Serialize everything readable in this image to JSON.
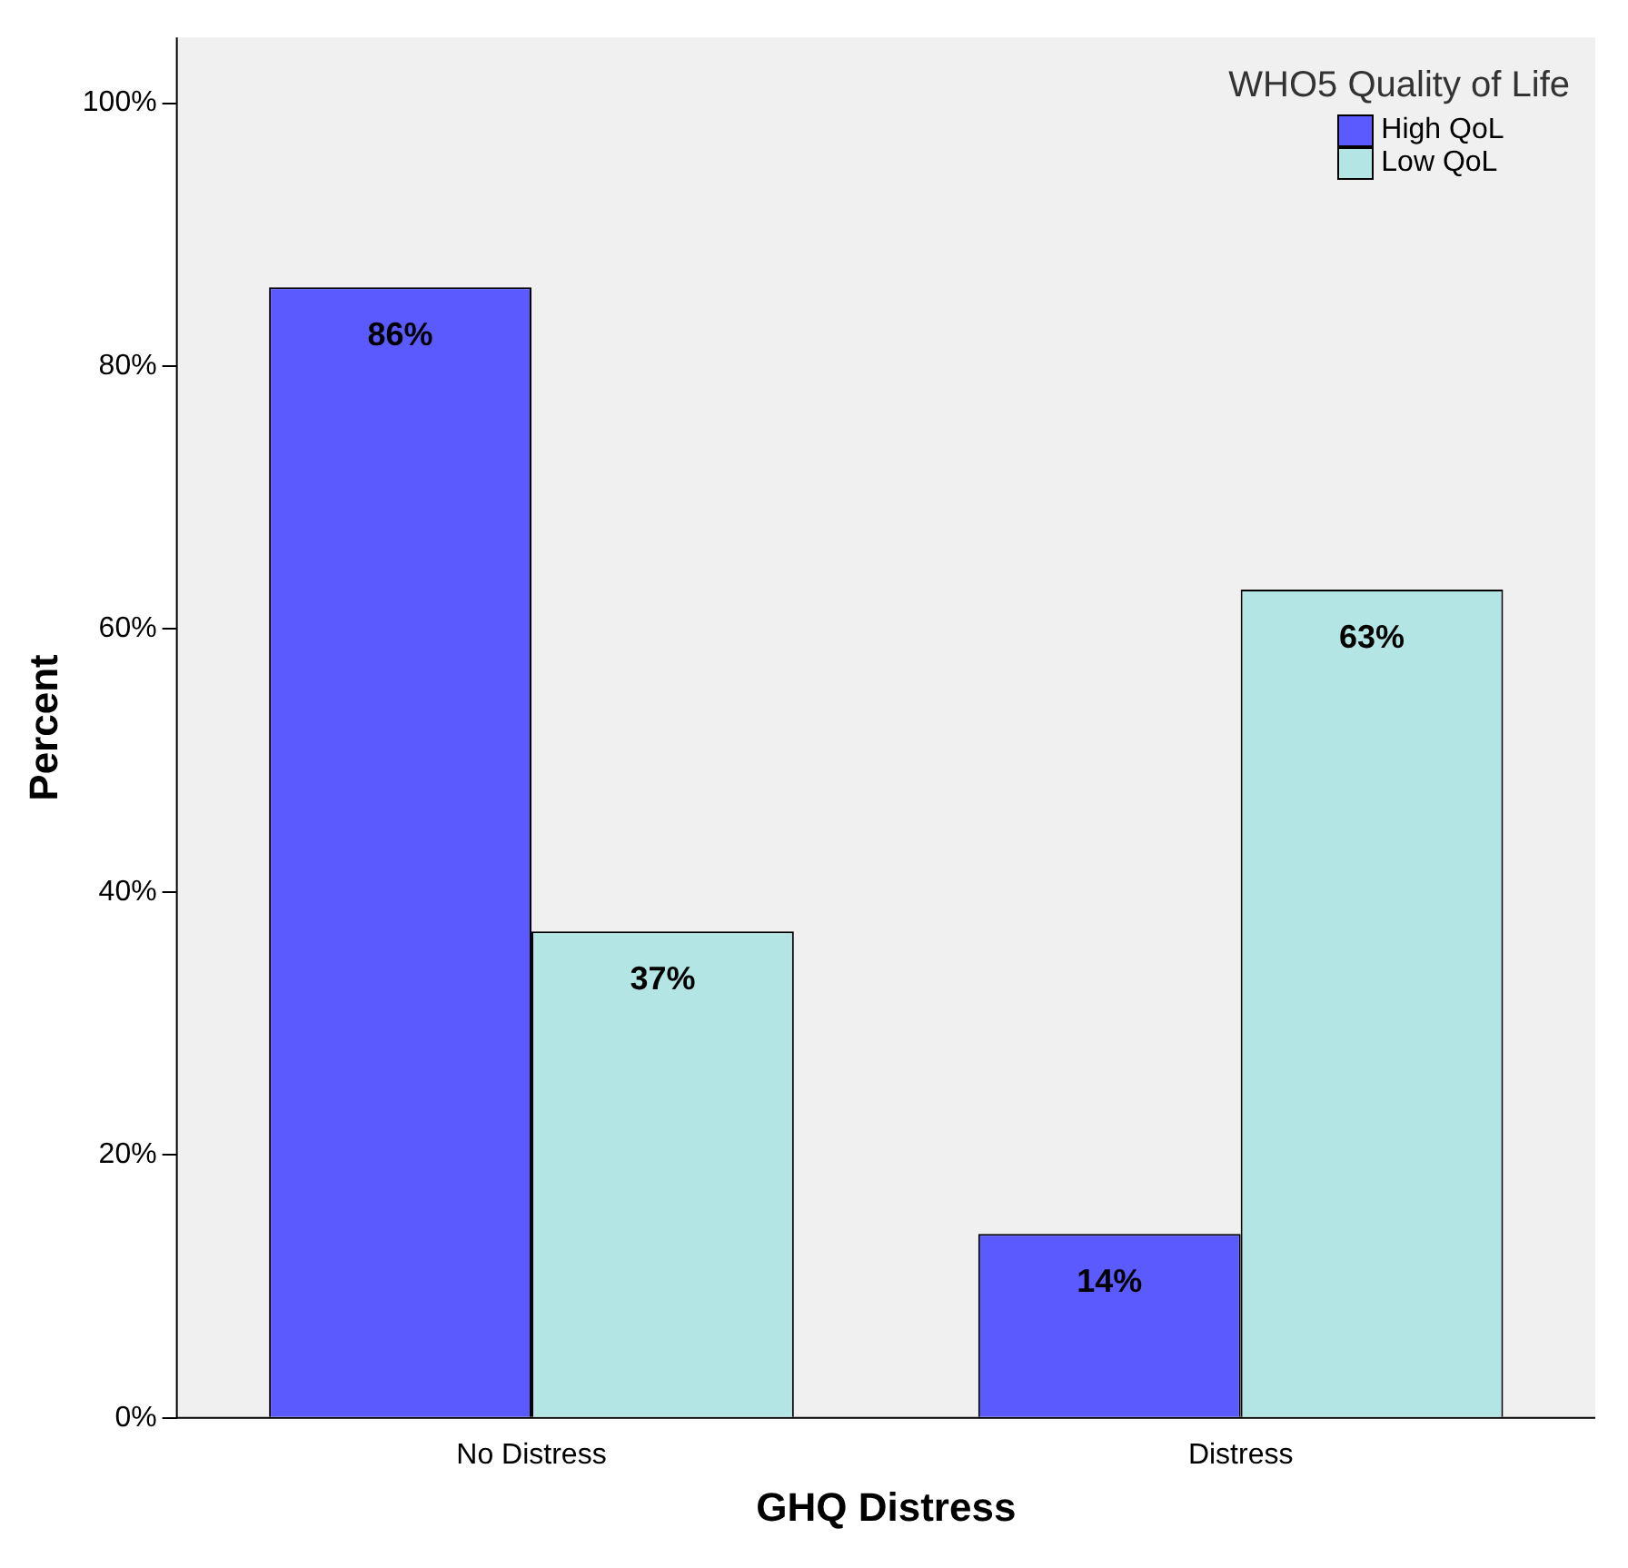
{
  "chart_data": {
    "type": "bar",
    "xlabel": "GHQ Distress",
    "ylabel": "Percent",
    "legend_title": "WHO5 Quality of Life",
    "categories": [
      "No Distress",
      "Distress"
    ],
    "series": [
      {
        "name": "High QoL",
        "color": "#5a5aff",
        "values": [
          86,
          14
        ],
        "value_labels": [
          "86%",
          "14%"
        ]
      },
      {
        "name": "Low QoL",
        "color": "#b3e5e5",
        "values": [
          37,
          63
        ],
        "value_labels": [
          "37%",
          "63%"
        ]
      }
    ],
    "ylim": [
      0,
      105
    ],
    "yticks": [
      {
        "value": 0,
        "label": "0%"
      },
      {
        "value": 20,
        "label": "20%"
      },
      {
        "value": 40,
        "label": "40%"
      },
      {
        "value": 60,
        "label": "60%"
      },
      {
        "value": 80,
        "label": "80%"
      },
      {
        "value": 100,
        "label": "100%"
      }
    ],
    "grid": false,
    "legend": "top right"
  }
}
